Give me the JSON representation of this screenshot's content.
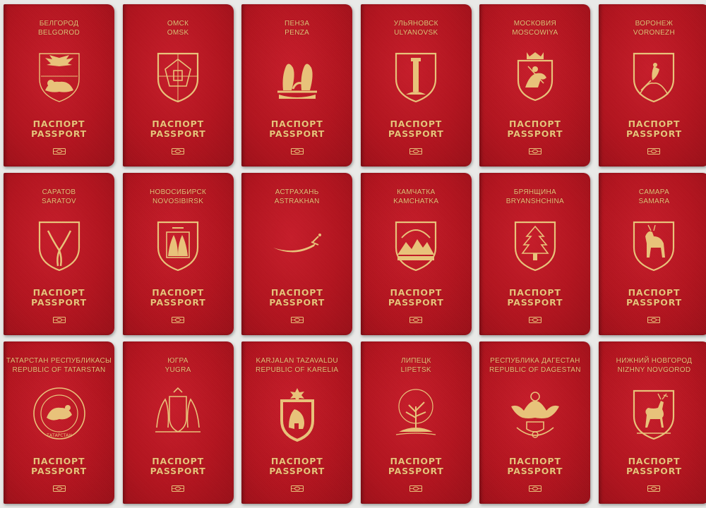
{
  "title_ru": "ПАСПОРТ",
  "title_en": "PASSPORT",
  "colors": {
    "cover": "#b5141f",
    "gold": "#e8c27a"
  },
  "passports": [
    {
      "native": "БЕЛГОРОД",
      "latin": "BELGOROD",
      "emblem": "eagle-lion-icon"
    },
    {
      "native": "ОМСК",
      "latin": "OMSK",
      "emblem": "fortress-shield-icon"
    },
    {
      "native": "ПЕНЗА",
      "latin": "PENZA",
      "emblem": "wheat-sheaves-icon"
    },
    {
      "native": "УЛЬЯНОВСК",
      "latin": "ULYANOVSK",
      "emblem": "column-shield-icon"
    },
    {
      "native": "МОСКОВИЯ",
      "latin": "MOSCOWIYA",
      "emblem": "saint-george-shield-icon"
    },
    {
      "native": "ВОРОНЕЖ",
      "latin": "VORONEZH",
      "emblem": "bird-mountain-icon"
    },
    {
      "native": "САРАТОВ",
      "latin": "SARATOV",
      "emblem": "sterlets-icon"
    },
    {
      "native": "НОВОСИБИРСК",
      "latin": "NOVOSIBIRSK",
      "emblem": "sables-shield-icon"
    },
    {
      "native": "АСТРАХАНЬ",
      "latin": "ASTRAKHAN",
      "emblem": "saber-icon"
    },
    {
      "native": "КАМЧАТКА",
      "latin": "KAMCHATKA",
      "emblem": "volcanoes-icon"
    },
    {
      "native": "БРЯНЩИНА",
      "latin": "BRYANSHCHINA",
      "emblem": "fir-tree-shield-icon"
    },
    {
      "native": "САМАРА",
      "latin": "SAMARA",
      "emblem": "goat-shield-icon"
    },
    {
      "native": "ТАТАРСТАН РЕСПУБЛИКАСЫ",
      "latin": "REPUBLIC OF TATARSTAN",
      "emblem": "snow-leopard-seal-icon",
      "seal_text": "ТАТАРСТАН"
    },
    {
      "native": "ЮГРА",
      "latin": "YUGRA",
      "emblem": "sables-coat-of-arms-icon"
    },
    {
      "native": "KARJALAN TAZAVALDU",
      "latin": "REPUBLIC OF KARELIA",
      "emblem": "bear-shield-icon"
    },
    {
      "native": "ЛИПЕЦК",
      "latin": "LIPETSK",
      "emblem": "linden-tree-icon"
    },
    {
      "native": "РЕСПУБЛИКА ДАГЕСТАН",
      "latin": "REPUBLIC OF DAGESTAN",
      "emblem": "eagle-sun-icon"
    },
    {
      "native": "НИЖНИЙ НОВГОРОД",
      "latin": "NIZHNY NOVGOROD",
      "emblem": "deer-shield-icon"
    }
  ]
}
